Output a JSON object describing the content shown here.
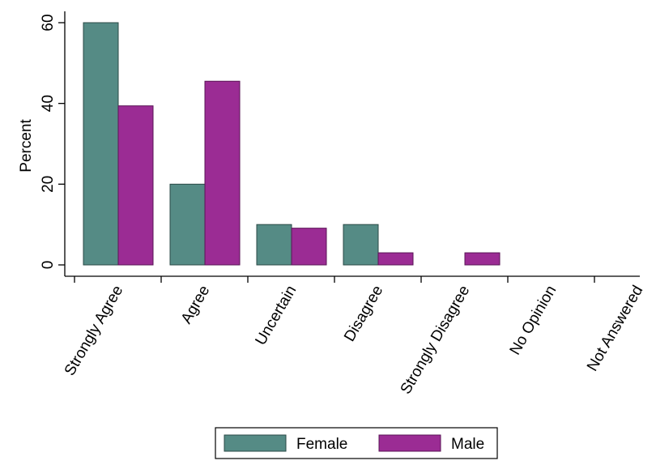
{
  "chart_data": {
    "type": "bar",
    "title": "",
    "xlabel": "",
    "ylabel": "Percent",
    "ylim": [
      0,
      60
    ],
    "yticks": [
      0,
      20,
      40,
      60
    ],
    "grid": false,
    "legend_position": "bottom",
    "categories": [
      "Strongly Agree",
      "Agree",
      "Uncertain",
      "Disagree",
      "Strongly Disagree",
      "No Opinion",
      "Not Answered"
    ],
    "series": [
      {
        "name": "Female",
        "color": "#558b85",
        "values": [
          60,
          20,
          10,
          10,
          0,
          0,
          0
        ]
      },
      {
        "name": "Male",
        "color": "#9b2c94",
        "values": [
          39.4,
          45.5,
          9.1,
          3.0,
          3.0,
          0,
          0
        ]
      }
    ]
  }
}
